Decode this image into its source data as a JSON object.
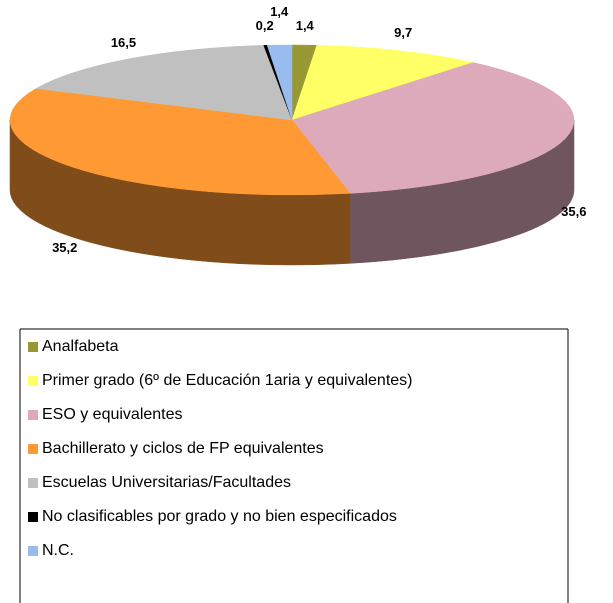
{
  "chart_data": {
    "type": "pie3d",
    "categories": [
      "Analfabeta",
      "Primer grado (6º de Educación 1aria y equivalentes)",
      "ESO y equivalentes",
      "Bachillerato y ciclos de FP equivalentes",
      "Escuelas Universitarias/Facultades",
      "No clasificables por grado y no bien especificados",
      "N.C."
    ],
    "values": [
      1.4,
      9.7,
      35.6,
      35.2,
      16.5,
      0.2,
      1.4
    ],
    "value_labels": [
      "1,4",
      "9,7",
      "35,6",
      "35,2",
      "16,5",
      "0,2",
      "1,4"
    ],
    "colors": [
      "#999933",
      "#ffff66",
      "#ddaabb",
      "#ff9933",
      "#c0c0c0",
      "#000000",
      "#99bbee"
    ]
  }
}
